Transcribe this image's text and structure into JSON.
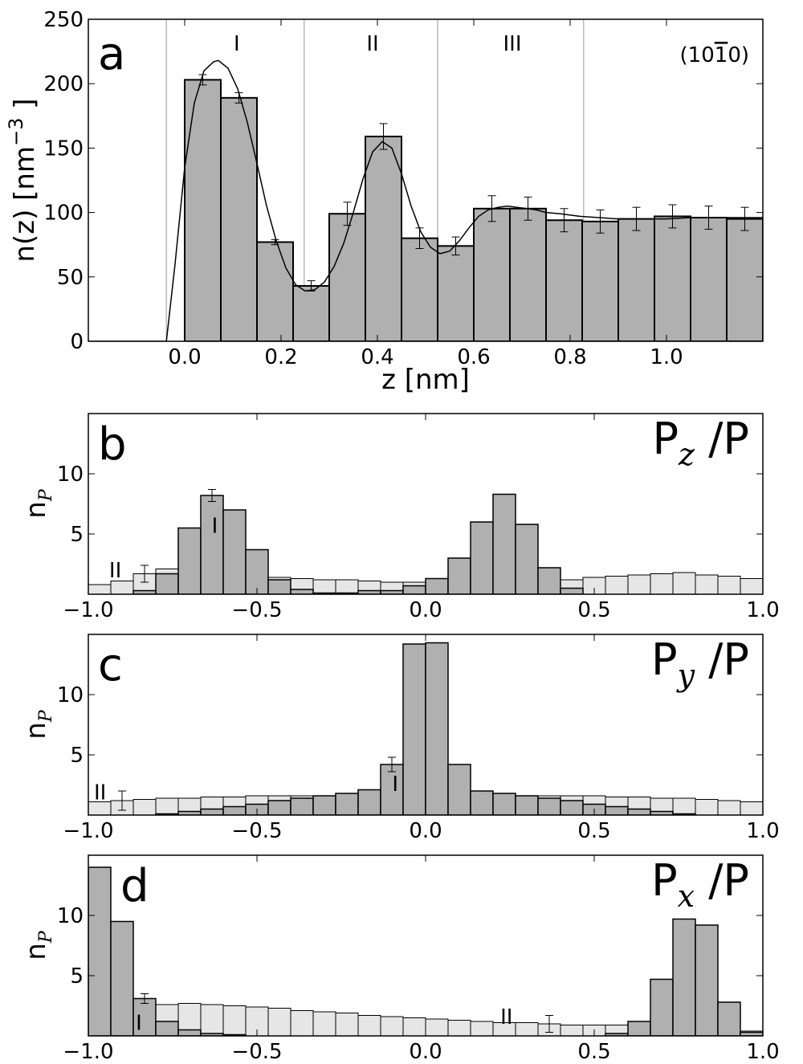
{
  "chart_data": [
    {
      "id": "a",
      "type": "bar",
      "panel_label": "a",
      "corner_label": "(10",
      "corner_label_bar": "1",
      "corner_label_tail": "0)",
      "xlabel": "z [nm]",
      "ylabel_main": "n(z) [nm",
      "ylabel_sup": "−3",
      "ylabel_close": "]",
      "xlim": [
        -0.2,
        1.2
      ],
      "ylim": [
        0,
        250
      ],
      "xticks": [
        0.0,
        0.2,
        0.4,
        0.6,
        0.8,
        1.0
      ],
      "xtick_labels": [
        "0.0",
        "0.2",
        "0.4",
        "0.6",
        "0.8",
        "1.0"
      ],
      "yticks": [
        0,
        50,
        100,
        150,
        200,
        250
      ],
      "ytick_labels": [
        "0",
        "50",
        "100",
        "150",
        "200",
        "250"
      ],
      "bin_width": 0.075,
      "bin_starts": [
        0.0,
        0.075,
        0.15,
        0.225,
        0.3,
        0.375,
        0.45,
        0.525,
        0.6,
        0.675,
        0.75,
        0.825,
        0.9,
        0.975,
        1.05,
        1.125
      ],
      "values": [
        203,
        189,
        77,
        43,
        99,
        159,
        80,
        74,
        103,
        103,
        94,
        93,
        95,
        97,
        96,
        95
      ],
      "errors": [
        4,
        4,
        2,
        4,
        9,
        10,
        8,
        7,
        10,
        9,
        9,
        9,
        9,
        9,
        9,
        9
      ],
      "region_lines": [
        -0.038,
        0.248,
        0.525,
        0.828
      ],
      "regions": [
        {
          "label": "I",
          "x": 0.108
        },
        {
          "label": "II",
          "x": 0.39
        },
        {
          "label": "III",
          "x": 0.68
        }
      ],
      "curve_x": [
        -0.2,
        -0.038,
        -0.02,
        0.0,
        0.02,
        0.04,
        0.06,
        0.07,
        0.09,
        0.11,
        0.13,
        0.15,
        0.17,
        0.19,
        0.21,
        0.23,
        0.25,
        0.27,
        0.29,
        0.31,
        0.33,
        0.35,
        0.37,
        0.39,
        0.41,
        0.43,
        0.45,
        0.47,
        0.49,
        0.51,
        0.53,
        0.55,
        0.57,
        0.59,
        0.61,
        0.63,
        0.65,
        0.67,
        0.69,
        0.71,
        0.73,
        0.75,
        0.78,
        0.82,
        0.86,
        0.9,
        0.95,
        1.0,
        1.05,
        1.1,
        1.15,
        1.2
      ],
      "curve_y": [
        0,
        0,
        60,
        135,
        185,
        210,
        217,
        218,
        212,
        196,
        170,
        138,
        105,
        78,
        57,
        44,
        39,
        40,
        46,
        58,
        76,
        100,
        126,
        147,
        155,
        150,
        130,
        105,
        85,
        73,
        68,
        70,
        78,
        88,
        97,
        102,
        104,
        105,
        104,
        103,
        102,
        100,
        99,
        97,
        96,
        95,
        95,
        95,
        96,
        96,
        96,
        96
      ]
    },
    {
      "id": "b",
      "type": "bar",
      "panel_label": "b",
      "title_main": "P",
      "title_sub": "z",
      "title_tail": " /P",
      "ylabel_main": "n",
      "ylabel_sub": "P",
      "xlim": [
        -1.0,
        1.0
      ],
      "ylim": [
        0,
        15
      ],
      "xticks": [
        -1.0,
        -0.5,
        0.0,
        0.5,
        1.0
      ],
      "xtick_labels": [
        "−1.0",
        "−0.5",
        "0.0",
        "0.5",
        "1.0"
      ],
      "yticks": [
        5,
        10
      ],
      "ytick_labels": [
        "5",
        "10"
      ],
      "bin_width": 0.0667,
      "light_values": [
        0.8,
        1.1,
        1.7,
        2.1,
        1.8,
        1.7,
        1.6,
        1.5,
        1.4,
        1.3,
        1.2,
        1.2,
        1.1,
        1.0,
        1.0,
        1.1,
        0.9,
        1.0,
        1.1,
        1.2,
        1.2,
        1.2,
        1.4,
        1.5,
        1.6,
        1.7,
        1.8,
        1.6,
        1.5,
        1.3
      ],
      "dark_values": [
        0,
        0,
        0.3,
        1.7,
        5.5,
        8.2,
        7.0,
        3.7,
        1.2,
        0.4,
        0.1,
        0.1,
        0.3,
        0.3,
        0.7,
        1.3,
        3.0,
        6.0,
        8.3,
        5.8,
        2.2,
        0.5,
        0,
        0,
        0,
        0,
        0,
        0,
        0,
        0
      ],
      "error_bars": [
        {
          "series": "light",
          "bin": 2,
          "value": 1.7,
          "err": 0.7
        },
        {
          "series": "dark",
          "bin": 5,
          "value": 8.2,
          "err": 0.5
        }
      ],
      "annotations": [
        {
          "label": "I",
          "x": -0.625,
          "y": 5.1
        },
        {
          "label": "II",
          "x": -0.92,
          "y": 1.4
        }
      ]
    },
    {
      "id": "c",
      "type": "bar",
      "panel_label": "c",
      "title_main": "P",
      "title_sub": "y",
      "title_tail": " /P",
      "ylabel_main": "n",
      "ylabel_sub": "P",
      "xlim": [
        -1.0,
        1.0
      ],
      "ylim": [
        0,
        15
      ],
      "xticks": [
        -1.0,
        -0.5,
        0.0,
        0.5,
        1.0
      ],
      "xtick_labels": [
        "−1.0",
        "−0.5",
        "0.0",
        "0.5",
        "1.0"
      ],
      "yticks": [
        5,
        10
      ],
      "ytick_labels": [
        "5",
        "10"
      ],
      "bin_width": 0.0667,
      "light_values": [
        1.1,
        1.2,
        1.3,
        1.4,
        1.4,
        1.5,
        1.5,
        1.6,
        1.6,
        1.6,
        1.6,
        1.6,
        1.6,
        1.7,
        1.7,
        1.7,
        1.7,
        1.7,
        1.6,
        1.6,
        1.6,
        1.6,
        1.6,
        1.5,
        1.5,
        1.4,
        1.4,
        1.3,
        1.2,
        1.1
      ],
      "dark_values": [
        0,
        0,
        0,
        0.1,
        0.3,
        0.5,
        0.7,
        0.9,
        1.2,
        1.4,
        1.6,
        1.8,
        2.1,
        4.2,
        14.2,
        14.3,
        4.2,
        2.0,
        1.8,
        1.6,
        1.4,
        1.2,
        0.9,
        0.7,
        0.5,
        0.3,
        0.1,
        0,
        0,
        0
      ],
      "error_bars": [
        {
          "series": "light",
          "bin": 1,
          "value": 1.2,
          "err": 0.8
        },
        {
          "series": "dark",
          "bin": 13,
          "value": 4.2,
          "err": 0.6
        }
      ],
      "annotations": [
        {
          "label": "I",
          "x": -0.09,
          "y": 2.0
        },
        {
          "label": "II",
          "x": -0.965,
          "y": 1.3
        }
      ]
    },
    {
      "id": "d",
      "type": "bar",
      "panel_label": "d",
      "title_main": "P",
      "title_sub": "x",
      "title_tail": " /P",
      "ylabel_main": "n",
      "ylabel_sub": "P",
      "xlim": [
        -1.0,
        1.0
      ],
      "ylim": [
        0,
        15
      ],
      "xticks": [
        -1.0,
        -0.5,
        0.0,
        0.5,
        1.0
      ],
      "xtick_labels": [
        "−1.0",
        "−0.5",
        "0.0",
        "0.5",
        "1.0"
      ],
      "yticks": [
        5,
        10
      ],
      "ytick_labels": [
        "5",
        "10"
      ],
      "bin_width": 0.0667,
      "light_values": [
        0,
        0,
        2.9,
        2.6,
        2.7,
        2.6,
        2.5,
        2.4,
        2.3,
        2.1,
        2.0,
        1.9,
        1.7,
        1.6,
        1.5,
        1.4,
        1.3,
        1.2,
        1.1,
        1.1,
        1.0,
        0.9,
        0.9,
        0.9,
        0.9,
        0.9,
        0.9,
        0.9,
        0.9,
        0.4
      ],
      "dark_values": [
        14.0,
        9.5,
        3.1,
        1.2,
        0.5,
        0.2,
        0.1,
        0,
        0,
        0,
        0,
        0,
        0,
        0,
        0,
        0,
        0,
        0,
        0,
        0,
        0,
        0,
        0,
        0.2,
        1.2,
        4.7,
        9.7,
        9.2,
        2.8,
        0.3
      ],
      "error_bars": [
        {
          "series": "dark",
          "bin": 2,
          "value": 3.1,
          "err": 0.4
        },
        {
          "series": "light",
          "bin": 20,
          "value": 1.0,
          "err": 0.7
        }
      ],
      "annotations": [
        {
          "label": "I",
          "x": -0.85,
          "y": 0.5
        },
        {
          "label": "II",
          "x": 0.24,
          "y": 1.0
        }
      ]
    }
  ]
}
